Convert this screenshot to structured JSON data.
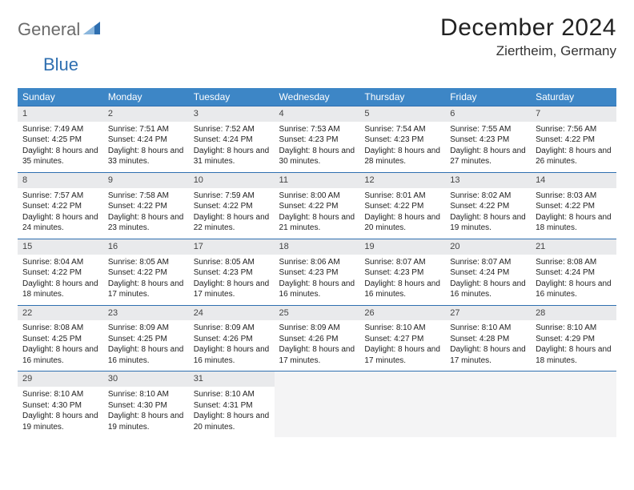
{
  "brand": {
    "part1": "General",
    "part2": "Blue"
  },
  "title": "December 2024",
  "location": "Ziertheim, Germany",
  "colors": {
    "header_bg": "#3d86c6",
    "row_divider": "#2f6fb0",
    "daynum_bg": "#e9eaec",
    "brand_gray": "#6b6b6b",
    "brand_blue": "#2f6fb0"
  },
  "day_headers": [
    "Sunday",
    "Monday",
    "Tuesday",
    "Wednesday",
    "Thursday",
    "Friday",
    "Saturday"
  ],
  "weeks": [
    [
      {
        "n": "1",
        "sr": "7:49 AM",
        "ss": "4:25 PM",
        "dl": "8 hours and 35 minutes."
      },
      {
        "n": "2",
        "sr": "7:51 AM",
        "ss": "4:24 PM",
        "dl": "8 hours and 33 minutes."
      },
      {
        "n": "3",
        "sr": "7:52 AM",
        "ss": "4:24 PM",
        "dl": "8 hours and 31 minutes."
      },
      {
        "n": "4",
        "sr": "7:53 AM",
        "ss": "4:23 PM",
        "dl": "8 hours and 30 minutes."
      },
      {
        "n": "5",
        "sr": "7:54 AM",
        "ss": "4:23 PM",
        "dl": "8 hours and 28 minutes."
      },
      {
        "n": "6",
        "sr": "7:55 AM",
        "ss": "4:23 PM",
        "dl": "8 hours and 27 minutes."
      },
      {
        "n": "7",
        "sr": "7:56 AM",
        "ss": "4:22 PM",
        "dl": "8 hours and 26 minutes."
      }
    ],
    [
      {
        "n": "8",
        "sr": "7:57 AM",
        "ss": "4:22 PM",
        "dl": "8 hours and 24 minutes."
      },
      {
        "n": "9",
        "sr": "7:58 AM",
        "ss": "4:22 PM",
        "dl": "8 hours and 23 minutes."
      },
      {
        "n": "10",
        "sr": "7:59 AM",
        "ss": "4:22 PM",
        "dl": "8 hours and 22 minutes."
      },
      {
        "n": "11",
        "sr": "8:00 AM",
        "ss": "4:22 PM",
        "dl": "8 hours and 21 minutes."
      },
      {
        "n": "12",
        "sr": "8:01 AM",
        "ss": "4:22 PM",
        "dl": "8 hours and 20 minutes."
      },
      {
        "n": "13",
        "sr": "8:02 AM",
        "ss": "4:22 PM",
        "dl": "8 hours and 19 minutes."
      },
      {
        "n": "14",
        "sr": "8:03 AM",
        "ss": "4:22 PM",
        "dl": "8 hours and 18 minutes."
      }
    ],
    [
      {
        "n": "15",
        "sr": "8:04 AM",
        "ss": "4:22 PM",
        "dl": "8 hours and 18 minutes."
      },
      {
        "n": "16",
        "sr": "8:05 AM",
        "ss": "4:22 PM",
        "dl": "8 hours and 17 minutes."
      },
      {
        "n": "17",
        "sr": "8:05 AM",
        "ss": "4:23 PM",
        "dl": "8 hours and 17 minutes."
      },
      {
        "n": "18",
        "sr": "8:06 AM",
        "ss": "4:23 PM",
        "dl": "8 hours and 16 minutes."
      },
      {
        "n": "19",
        "sr": "8:07 AM",
        "ss": "4:23 PM",
        "dl": "8 hours and 16 minutes."
      },
      {
        "n": "20",
        "sr": "8:07 AM",
        "ss": "4:24 PM",
        "dl": "8 hours and 16 minutes."
      },
      {
        "n": "21",
        "sr": "8:08 AM",
        "ss": "4:24 PM",
        "dl": "8 hours and 16 minutes."
      }
    ],
    [
      {
        "n": "22",
        "sr": "8:08 AM",
        "ss": "4:25 PM",
        "dl": "8 hours and 16 minutes."
      },
      {
        "n": "23",
        "sr": "8:09 AM",
        "ss": "4:25 PM",
        "dl": "8 hours and 16 minutes."
      },
      {
        "n": "24",
        "sr": "8:09 AM",
        "ss": "4:26 PM",
        "dl": "8 hours and 16 minutes."
      },
      {
        "n": "25",
        "sr": "8:09 AM",
        "ss": "4:26 PM",
        "dl": "8 hours and 17 minutes."
      },
      {
        "n": "26",
        "sr": "8:10 AM",
        "ss": "4:27 PM",
        "dl": "8 hours and 17 minutes."
      },
      {
        "n": "27",
        "sr": "8:10 AM",
        "ss": "4:28 PM",
        "dl": "8 hours and 17 minutes."
      },
      {
        "n": "28",
        "sr": "8:10 AM",
        "ss": "4:29 PM",
        "dl": "8 hours and 18 minutes."
      }
    ],
    [
      {
        "n": "29",
        "sr": "8:10 AM",
        "ss": "4:30 PM",
        "dl": "8 hours and 19 minutes."
      },
      {
        "n": "30",
        "sr": "8:10 AM",
        "ss": "4:30 PM",
        "dl": "8 hours and 19 minutes."
      },
      {
        "n": "31",
        "sr": "8:10 AM",
        "ss": "4:31 PM",
        "dl": "8 hours and 20 minutes."
      },
      null,
      null,
      null,
      null
    ]
  ],
  "labels": {
    "sunrise": "Sunrise:",
    "sunset": "Sunset:",
    "daylight": "Daylight:"
  }
}
